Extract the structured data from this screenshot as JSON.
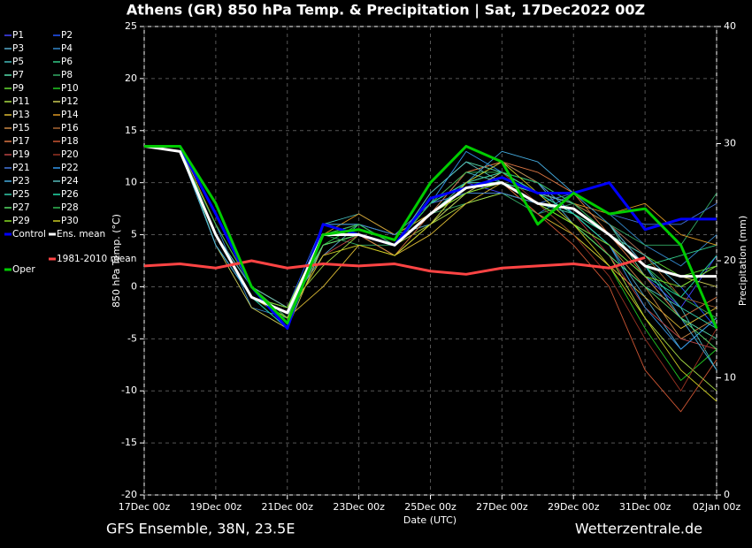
{
  "chart_data": {
    "type": "line",
    "title": "Athens  (GR)  850 hPa Temp. & Precipitation | Sat, 17Dec2022 00Z",
    "subtitle": "GFS Ensemble, 38N, 23.5E",
    "source": "Wetterzentrale.de",
    "xlabel": "Date (UTC)",
    "ylabel": "850 hPa Temp. (°C)",
    "y2label": "Precipitation (mm)",
    "x": [
      0,
      1,
      2,
      3,
      4,
      5,
      6,
      7,
      8,
      9,
      10,
      11,
      12,
      13,
      14,
      15,
      16
    ],
    "xlim": [
      0,
      16
    ],
    "xticks": [
      {
        "value": 0,
        "label": "17Dec 00z"
      },
      {
        "value": 2,
        "label": "19Dec 00z"
      },
      {
        "value": 4,
        "label": "21Dec 00z"
      },
      {
        "value": 6,
        "label": "23Dec 00z"
      },
      {
        "value": 8,
        "label": "25Dec 00z"
      },
      {
        "value": 10,
        "label": "27Dec 00z"
      },
      {
        "value": 12,
        "label": "29Dec 00z"
      },
      {
        "value": 14,
        "label": "31Dec 00z"
      },
      {
        "value": 16,
        "label": "02Jan 00z"
      }
    ],
    "ylim": [
      -20,
      25
    ],
    "yticks": [
      -20,
      -15,
      -10,
      -5,
      0,
      5,
      10,
      15,
      20,
      25
    ],
    "y2lim": [
      0,
      40
    ],
    "y2ticks": [
      0,
      10,
      20,
      30,
      40
    ],
    "grid": true,
    "series": [
      {
        "name": "P1",
        "color": "#4444ff",
        "values": [
          13.5,
          13,
          5,
          -1,
          -3,
          4,
          6,
          4,
          8,
          10,
          9,
          8,
          7,
          4,
          1,
          -2,
          3
        ]
      },
      {
        "name": "P2",
        "color": "#2255ff",
        "values": [
          13.5,
          13,
          4,
          -1,
          -2,
          6,
          5,
          4,
          7,
          9,
          11,
          9,
          8,
          6,
          3,
          0,
          -4
        ]
      },
      {
        "name": "P3",
        "color": "#55aacc",
        "values": [
          13.5,
          13.5,
          5,
          0,
          -2,
          3,
          6,
          5,
          6,
          10,
          12,
          10,
          6,
          4,
          -1,
          -6,
          -3
        ]
      },
      {
        "name": "P4",
        "color": "#3388cc",
        "values": [
          13.5,
          13,
          6,
          -2,
          -3,
          5,
          5,
          4,
          8,
          9,
          10,
          7,
          9,
          7,
          4,
          2,
          5
        ]
      },
      {
        "name": "P5",
        "color": "#44bbbb",
        "values": [
          13.5,
          13,
          5,
          -1,
          -4,
          6,
          7,
          5,
          7,
          11,
          10,
          9,
          6,
          3,
          0,
          -2,
          -8
        ]
      },
      {
        "name": "P6",
        "color": "#33cc88",
        "values": [
          13.5,
          13,
          5,
          0,
          -2,
          4,
          5,
          3,
          6,
          9,
          9,
          8,
          7,
          5,
          2,
          3,
          4
        ]
      },
      {
        "name": "P7",
        "color": "#55ddaa",
        "values": [
          13.5,
          13.5,
          4,
          -1,
          -3,
          5,
          6,
          4,
          9,
          12,
          11,
          10,
          8,
          6,
          1,
          -3,
          -5
        ]
      },
      {
        "name": "P8",
        "color": "#33aa66",
        "values": [
          13.5,
          13,
          5,
          -1,
          -2,
          5,
          4,
          4,
          7,
          8,
          9,
          7,
          8,
          6,
          4,
          4,
          9
        ]
      },
      {
        "name": "P9",
        "color": "#66dd33",
        "values": [
          13.5,
          13,
          6,
          0,
          -3,
          5,
          5,
          4,
          8,
          10,
          10,
          9,
          7,
          5,
          3,
          1,
          2
        ]
      },
      {
        "name": "P10",
        "color": "#22cc22",
        "values": [
          13.5,
          13,
          5,
          -1,
          -2,
          4,
          6,
          5,
          7,
          9,
          9,
          8,
          5,
          2,
          -4,
          -9,
          -6
        ]
      },
      {
        "name": "P11",
        "color": "#aadd44",
        "values": [
          13.5,
          13,
          5,
          -1,
          -2,
          2,
          5,
          4,
          6,
          8,
          9,
          8,
          6,
          3,
          -3,
          -7,
          -10
        ]
      },
      {
        "name": "P12",
        "color": "#cccc55",
        "values": [
          13.5,
          13,
          4,
          -2,
          -4,
          4,
          5,
          3,
          6,
          9,
          11,
          9,
          8,
          6,
          2,
          1,
          0
        ]
      },
      {
        "name": "P13",
        "color": "#ddbb33",
        "values": [
          13.5,
          13,
          5,
          0,
          -3,
          0,
          4,
          3,
          5,
          8,
          10,
          7,
          5,
          2,
          -1,
          -4,
          -2
        ]
      },
      {
        "name": "P14",
        "color": "#dd9922",
        "values": [
          13.5,
          13.5,
          6,
          0,
          -2,
          5,
          7,
          5,
          7,
          10,
          11,
          9,
          8,
          7,
          8,
          5,
          4
        ]
      },
      {
        "name": "P15",
        "color": "#cc8844",
        "values": [
          13.5,
          13,
          5,
          -1,
          -2,
          4,
          5,
          4,
          8,
          11,
          12,
          10,
          7,
          4,
          0,
          -5,
          -3
        ]
      },
      {
        "name": "P16",
        "color": "#aa6633",
        "values": [
          13.5,
          13,
          5,
          -1,
          -3,
          5,
          6,
          4,
          8,
          10,
          11,
          9,
          8,
          6,
          3,
          -1,
          -2
        ]
      },
      {
        "name": "P17",
        "color": "#dd7744",
        "values": [
          13.5,
          13,
          5,
          -1,
          -3,
          4,
          5,
          3,
          7,
          11,
          12,
          11,
          9,
          5,
          1,
          -3,
          -1
        ]
      },
      {
        "name": "P18",
        "color": "#cc5533",
        "values": [
          13.5,
          13,
          5,
          0,
          -2,
          5,
          6,
          4,
          7,
          9,
          10,
          7,
          4,
          0,
          -8,
          -12,
          -7
        ]
      },
      {
        "name": "P19",
        "color": "#bb4444",
        "values": [
          13.5,
          13,
          5,
          -1,
          -3,
          3,
          5,
          4,
          7,
          10,
          10,
          9,
          7,
          3,
          -2,
          -5,
          -6
        ]
      },
      {
        "name": "P20",
        "color": "#993322",
        "values": [
          13.5,
          13,
          5,
          -1,
          -2,
          5,
          6,
          4,
          8,
          10,
          11,
          8,
          5,
          1,
          -5,
          -10,
          -4
        ]
      },
      {
        "name": "P21",
        "color": "#4477dd",
        "values": [
          13.5,
          13,
          5,
          0,
          -3,
          6,
          6,
          5,
          8,
          9,
          9,
          8,
          9,
          7,
          6,
          6,
          8
        ]
      },
      {
        "name": "P22",
        "color": "#3399ee",
        "values": [
          13.5,
          13,
          5,
          -1,
          -2,
          5,
          5,
          4,
          8,
          13,
          11,
          10,
          7,
          4,
          -2,
          -6,
          -3
        ]
      },
      {
        "name": "P23",
        "color": "#44aadd",
        "values": [
          13.5,
          13,
          4,
          -1,
          -3,
          6,
          6,
          4,
          8,
          10,
          13,
          12,
          9,
          6,
          2,
          -3,
          -8
        ]
      },
      {
        "name": "P24",
        "color": "#55bbbb",
        "values": [
          13.5,
          13.5,
          5,
          0,
          -2,
          5,
          5,
          4,
          9,
          12,
          10,
          9,
          8,
          5,
          3,
          0,
          2
        ]
      },
      {
        "name": "P25",
        "color": "#33ccaa",
        "values": [
          13.5,
          13,
          5,
          -1,
          -3,
          4,
          5,
          4,
          7,
          10,
          10,
          9,
          7,
          5,
          2,
          -2,
          -4
        ]
      },
      {
        "name": "P26",
        "color": "#22ddaa",
        "values": [
          13.5,
          13,
          5,
          -1,
          -4,
          5,
          6,
          4,
          8,
          10,
          11,
          9,
          7,
          4,
          1,
          -1,
          3
        ]
      },
      {
        "name": "P27",
        "color": "#55dd66",
        "values": [
          13.5,
          13,
          5,
          -1,
          -2,
          4,
          5,
          4,
          7,
          9,
          10,
          8,
          6,
          3,
          0,
          -3,
          -6
        ]
      },
      {
        "name": "P28",
        "color": "#33bb55",
        "values": [
          13.5,
          13,
          6,
          0,
          -3,
          5,
          6,
          4,
          8,
          11,
          11,
          10,
          8,
          5,
          2,
          -1,
          -3
        ]
      },
      {
        "name": "P29",
        "color": "#88dd22",
        "values": [
          13.5,
          13,
          5,
          -1,
          -2,
          5,
          5,
          4,
          7,
          9,
          10,
          8,
          6,
          4,
          1,
          0,
          2
        ]
      },
      {
        "name": "P30",
        "color": "#cccc22",
        "values": [
          13.5,
          13,
          5,
          -1,
          -3,
          3,
          4,
          3,
          6,
          10,
          12,
          9,
          6,
          2,
          -3,
          -8,
          -11
        ]
      },
      {
        "name": "Control",
        "color": "#0000ff",
        "values": [
          13.5,
          13.5,
          7,
          0,
          -4,
          6,
          5,
          4,
          8.5,
          9.5,
          10.5,
          9,
          9,
          10,
          5.5,
          6.5,
          6.5
        ]
      },
      {
        "name": "Ens. mean",
        "color": "#ffffff",
        "values": [
          13.5,
          13,
          5,
          -1,
          -2.5,
          5,
          5,
          4,
          7,
          9.5,
          10,
          8,
          7.5,
          5,
          2,
          1,
          1
        ]
      },
      {
        "name": "1981-2010 mean",
        "color": "#ff4444",
        "values": [
          2,
          2.2,
          1.8,
          2.5,
          1.8,
          2.2,
          2,
          2.2,
          1.5,
          1.2,
          1.8,
          2,
          2.2,
          1.8,
          2.8,
          null,
          null
        ]
      },
      {
        "name": "Oper",
        "color": "#00cc00",
        "values": [
          13.5,
          13.5,
          8,
          0,
          -3.5,
          5,
          5.5,
          4.5,
          10,
          13.5,
          12,
          6,
          9,
          7,
          7.5,
          4,
          -4
        ]
      }
    ]
  }
}
